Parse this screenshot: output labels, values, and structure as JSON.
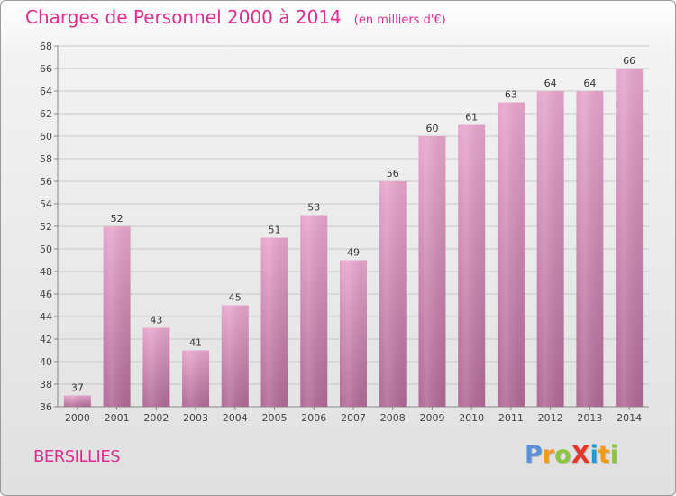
{
  "title": "Charges de Personnel 2000 à 2014",
  "unit": "(en milliers d'€)",
  "place": "BERSILLIES",
  "logo": {
    "text": "ProXiti",
    "letters": [
      "P",
      "r",
      "o",
      "X",
      "i",
      "t",
      "i"
    ],
    "colors": [
      "#5b8fd6",
      "#f39a1d",
      "#8cc63f",
      "#e2372b",
      "#1e9cd7",
      "#f39a1d",
      "#8cc63f"
    ]
  },
  "colors": {
    "accent": "#dd2d8f",
    "bar_top": "#e8a6cc",
    "bar_bottom": "#b06a96"
  },
  "chart_data": {
    "type": "bar",
    "categories": [
      "2000",
      "2001",
      "2002",
      "2003",
      "2004",
      "2005",
      "2006",
      "2007",
      "2008",
      "2009",
      "2010",
      "2011",
      "2012",
      "2013",
      "2014"
    ],
    "values": [
      37,
      52,
      43,
      41,
      45,
      51,
      53,
      49,
      56,
      60,
      61,
      63,
      64,
      64,
      66
    ],
    "ylim": [
      36,
      68
    ],
    "yticks": [
      36,
      38,
      40,
      42,
      44,
      46,
      48,
      50,
      52,
      54,
      56,
      58,
      60,
      62,
      64,
      66,
      68
    ],
    "grid": true,
    "data_labels": true
  }
}
